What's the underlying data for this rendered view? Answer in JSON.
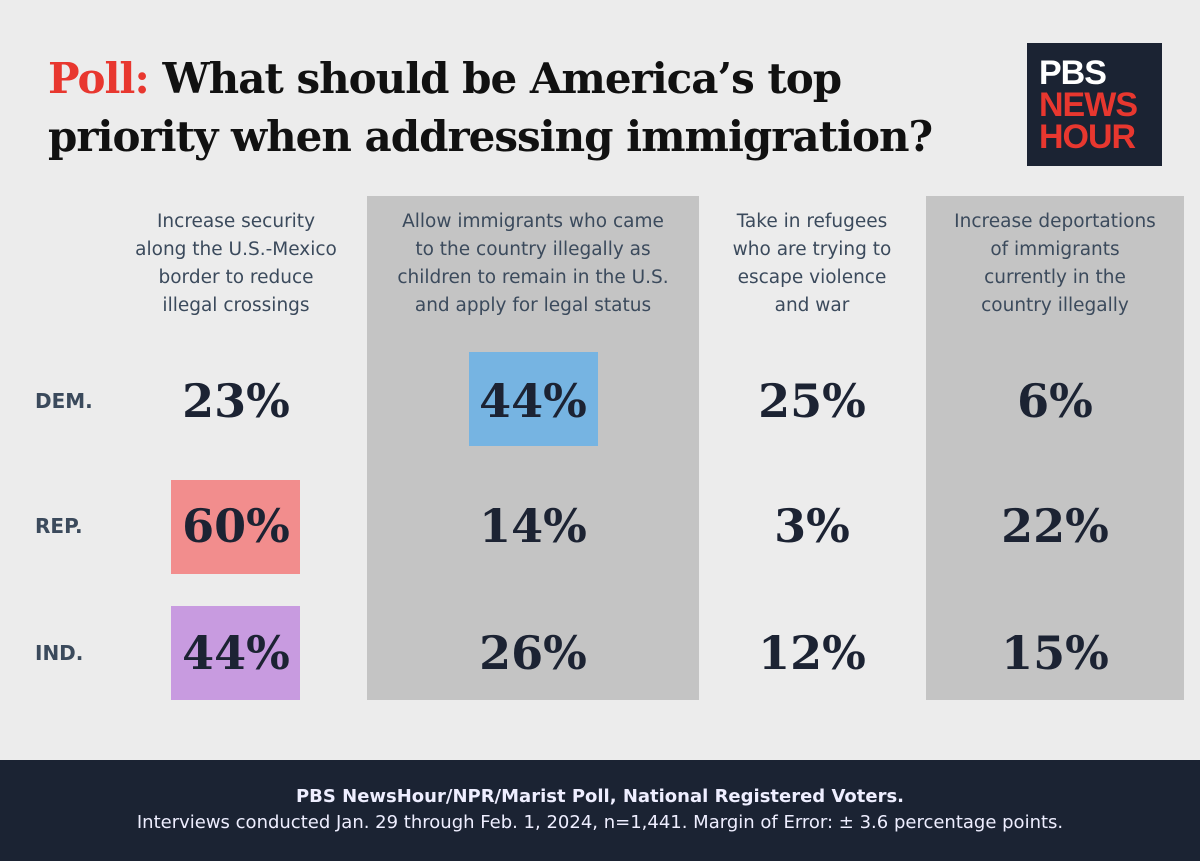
{
  "header": {
    "label": "Poll:",
    "title_lines": [
      "What should be America’s top",
      "priority when addressing immigration?"
    ]
  },
  "logo": {
    "lines": [
      "PBS",
      "NEWS",
      "HOUR"
    ]
  },
  "table": {
    "columns": [
      [
        "Increase security",
        "along the U.S.-Mexico",
        "border to reduce",
        "illegal crossings"
      ],
      [
        "Allow immigrants who came",
        "to the country illegally as",
        "children to remain in the U.S.",
        "and apply for legal status"
      ],
      [
        "Take in refugees",
        "who are trying to",
        "escape violence",
        "and war"
      ],
      [
        "Increase deportations",
        "of immigrants",
        "currently in the",
        "country illegally"
      ]
    ],
    "rows": [
      {
        "label": "DEM.",
        "cells": [
          "23%",
          "44%",
          "25%",
          "6%"
        ]
      },
      {
        "label": "REP.",
        "cells": [
          "60%",
          "14%",
          "3%",
          "22%"
        ]
      },
      {
        "label": "IND.",
        "cells": [
          "44%",
          "26%",
          "12%",
          "15%"
        ]
      }
    ]
  },
  "footer": {
    "source": "PBS NewsHour/NPR/Marist Poll, National Registered Voters.",
    "note": "Interviews conducted Jan. 29 through Feb. 1, 2024, n=1,441. Margin of Error:  ± 3.6 percentage points."
  }
}
